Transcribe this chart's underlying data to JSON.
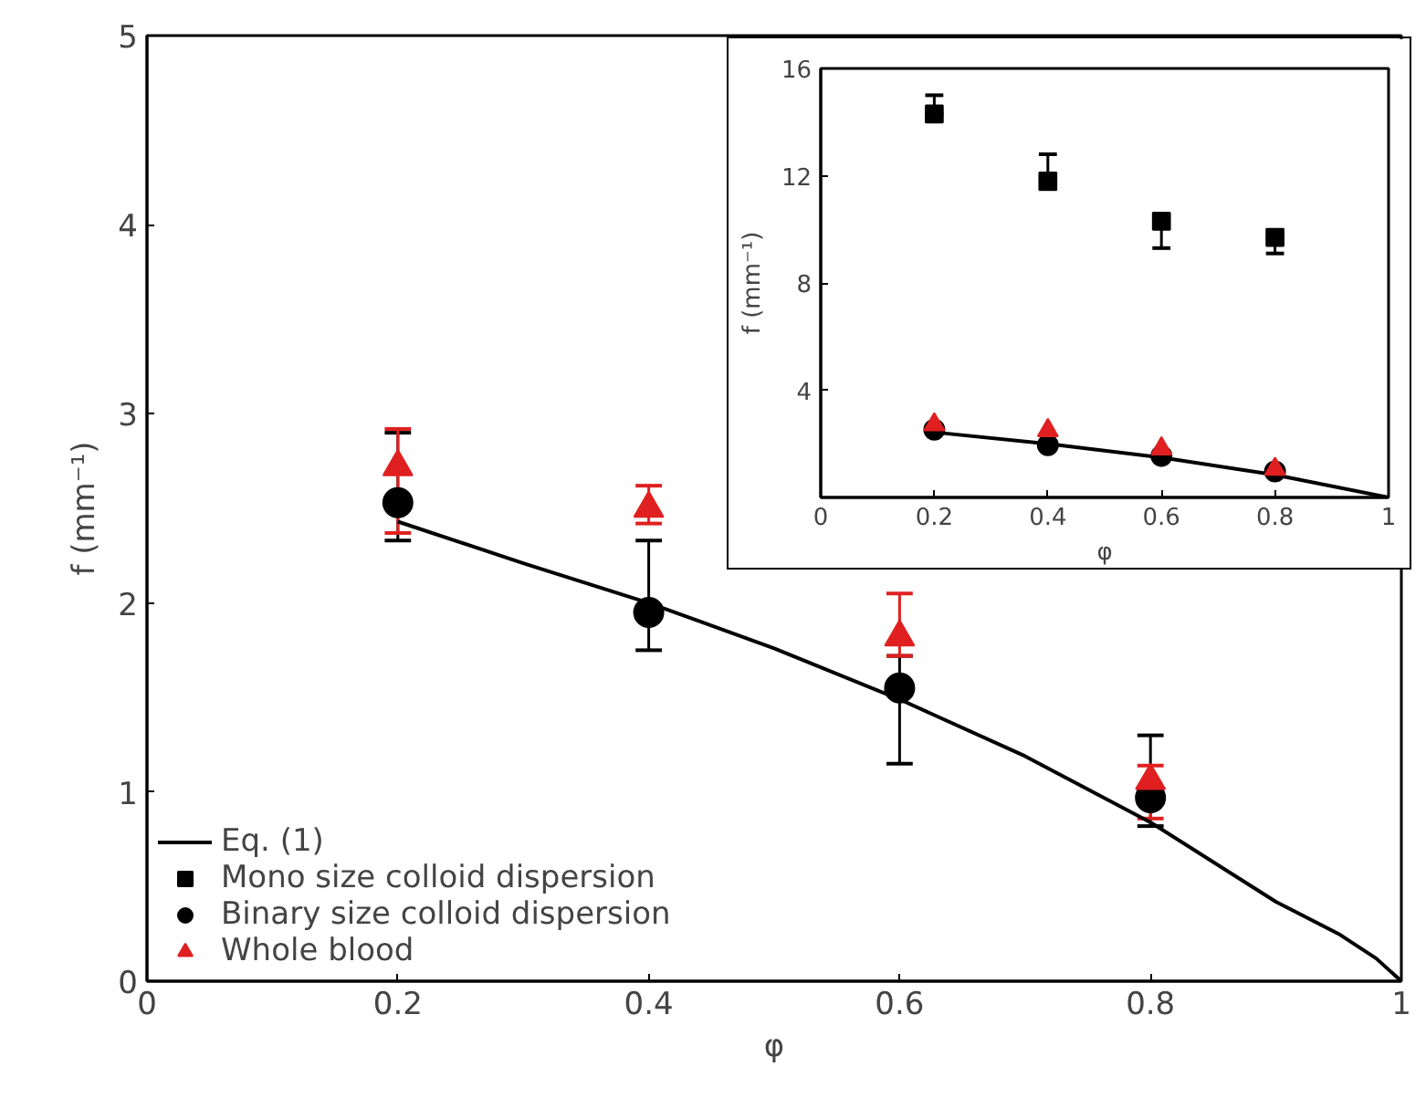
{
  "chart_data": [
    {
      "type": "scatter",
      "xlabel": "φ",
      "ylabel": "f (mm⁻¹)",
      "xlim": [
        0,
        1
      ],
      "ylim": [
        0,
        5
      ],
      "xticks": [
        0,
        0.2,
        0.4,
        0.6,
        0.8,
        1
      ],
      "yticks": [
        0,
        1,
        2,
        3,
        4,
        5
      ],
      "grid": false,
      "legend": "bottom left",
      "x": [
        0.2,
        0.4,
        0.6,
        0.8
      ],
      "series": [
        {
          "name": "Eq. (1)",
          "type": "line",
          "marker": "none",
          "color": "#000000",
          "x": [
            0.2,
            0.3,
            0.4,
            0.5,
            0.6,
            0.7,
            0.8,
            0.9,
            0.95,
            0.98,
            1
          ],
          "values": [
            2.43,
            2.21,
            2.0,
            1.76,
            1.49,
            1.19,
            0.84,
            0.42,
            0.25,
            0.12,
            0
          ]
        },
        {
          "name": "Mono size colloid dispersion",
          "marker": "square",
          "color": "#000000",
          "values": [
            null,
            null,
            null,
            null
          ]
        },
        {
          "name": "Binary size colloid dispersion",
          "marker": "circle",
          "color": "#000000",
          "values": [
            2.53,
            1.95,
            1.55,
            0.97
          ],
          "errors": [
            [
              2.33,
              2.9
            ],
            [
              1.75,
              2.33
            ],
            [
              1.15,
              1.72
            ],
            [
              0.82,
              1.3
            ]
          ]
        },
        {
          "name": "Whole blood",
          "marker": "triangle",
          "color": "#e02020",
          "values": [
            2.72,
            2.5,
            1.82,
            1.06
          ],
          "errors": [
            [
              2.37,
              2.92
            ],
            [
              2.42,
              2.62
            ],
            [
              1.72,
              2.05
            ],
            [
              0.86,
              1.14
            ]
          ]
        }
      ]
    },
    {
      "type": "scatter",
      "xlabel": "φ",
      "ylabel": "f (mm⁻¹)",
      "xlim": [
        0,
        1
      ],
      "ylim": [
        0,
        16
      ],
      "xticks": [
        0,
        0.2,
        0.4,
        0.6,
        0.8,
        1
      ],
      "yticks": [
        4,
        8,
        12,
        16
      ],
      "grid": false,
      "legend": false,
      "x": [
        0.2,
        0.4,
        0.6,
        0.8
      ],
      "series": [
        {
          "type": "line",
          "marker": "none",
          "color": "#000000",
          "x": [
            0.2,
            0.4,
            0.6,
            0.8,
            1
          ],
          "values": [
            2.43,
            2.0,
            1.49,
            0.84,
            0
          ]
        },
        {
          "marker": "square",
          "color": "#000000",
          "values": [
            14.3,
            11.8,
            10.3,
            9.7
          ],
          "errors": [
            [
              14.3,
              15.0
            ],
            [
              11.5,
              12.8
            ],
            [
              9.3,
              10.3
            ],
            [
              9.1,
              9.7
            ]
          ]
        },
        {
          "marker": "circle",
          "color": "#000000",
          "values": [
            2.53,
            1.95,
            1.55,
            0.97
          ]
        },
        {
          "marker": "triangle",
          "color": "#e02020",
          "values": [
            2.72,
            2.5,
            1.82,
            1.06
          ]
        }
      ]
    }
  ]
}
